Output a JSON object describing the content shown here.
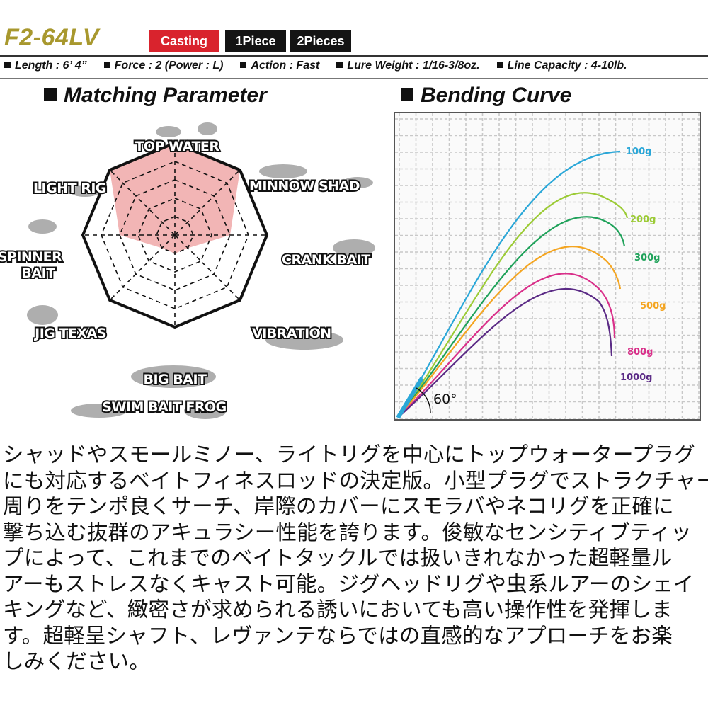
{
  "header": {
    "title": "F2-64LV",
    "badges": [
      "Casting",
      "1Piece",
      "2Pieces"
    ],
    "badge_colors": [
      "#d9232d",
      "#141414",
      "#141414"
    ],
    "title_color": "#a8982e"
  },
  "specs": [
    "Length : 6’ 4”",
    "Force : 2 (Power : L)",
    "Action : Fast",
    "Lure Weight : 1/16-3/8oz.",
    "Line Capacity : 4-10lb."
  ],
  "matching": {
    "heading": "Matching Parameter",
    "labels": {
      "top_water": "TOP WATER",
      "minnow_shad": "MINNOW SHAD",
      "crank_bait": "CRANK BAIT",
      "vibration": "VIBRATION",
      "big_bait": "BIG BAIT",
      "swim_bait_frog": "SWIM BAIT  FROG",
      "jig_texas": "JIG  TEXAS",
      "spinner_bait_1": "SPINNER",
      "spinner_bait_2": "BAIT",
      "light_rig": "LIGHT RIG"
    },
    "axes": [
      "TOP WATER",
      "MINNOW SHAD",
      "CRANK BAIT",
      "VIBRATION",
      "BIG BAIT / SWIM BAIT FROG",
      "JIG TEXAS",
      "SPINNER BAIT",
      "LIGHT RIG"
    ],
    "values": [
      5,
      5,
      3,
      1,
      1,
      1,
      3,
      5
    ],
    "max": 5,
    "fill_color": "#f2b5b5"
  },
  "bending": {
    "heading": "Bending Curve",
    "angle_label": "60°",
    "curves": [
      {
        "label": "100g",
        "color": "#2aa7d8"
      },
      {
        "label": "200g",
        "color": "#9ccb36"
      },
      {
        "label": "300g",
        "color": "#1fa25a"
      },
      {
        "label": "500g",
        "color": "#f4a521"
      },
      {
        "label": "800g",
        "color": "#d9308a"
      },
      {
        "label": "1000g",
        "color": "#5b2b86"
      }
    ]
  },
  "description": [
    "シャッドやスモールミノー、ライトリグを中心にトップウォータープラグ",
    "にも対応するベイトフィネスロッドの決定版。小型プラグでストラクチャー",
    "周りをテンポ良くサーチ、岸際のカバーにスモラバやネコリグを正確に",
    "撃ち込む抜群のアキュラシー性能を誇ります。俊敏なセンシティブティッ",
    "プによって、これまでのベイトタックルでは扱いきれなかった超軽量ル",
    "アーもストレスなくキャスト可能。ジグヘッドリグや虫系ルアーのシェイ",
    "キングなど、緻密さが求められる誘いにおいても高い操作性を発揮しま",
    "す。超軽呈シャフト、レヴァンテならではの直感的なアプローチをお楽",
    "しみください。"
  ]
}
